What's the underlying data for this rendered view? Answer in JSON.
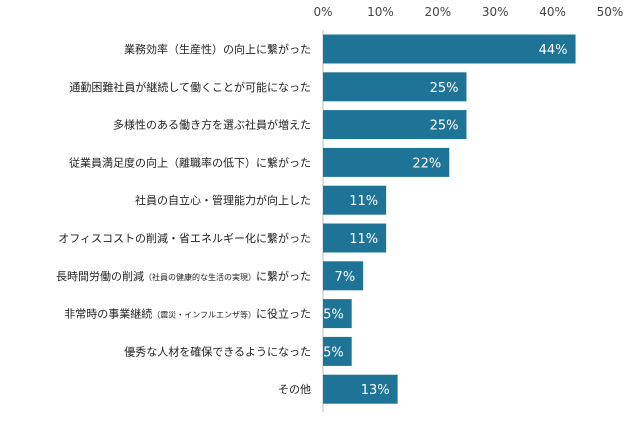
{
  "chart_data": {
    "type": "bar",
    "orientation": "horizontal",
    "title": "",
    "xlabel": "",
    "ylabel": "",
    "xlim": [
      0,
      50
    ],
    "ticks": [
      "0%",
      "10%",
      "20%",
      "30%",
      "40%",
      "50%"
    ],
    "grid": false,
    "bar_color": "#1e7496",
    "value_label_color": "#ffffff",
    "categories": [
      {
        "main": "業務効率（生産性）の向上に繋がった",
        "note": "",
        "suffix": ""
      },
      {
        "main": "通勤困難社員が継続して働くことが可能になった",
        "note": "",
        "suffix": ""
      },
      {
        "main": "多様性のある働き方を選ぶ社員が増えた",
        "note": "",
        "suffix": ""
      },
      {
        "main": "従業員満足度の向上（離職率の低下）に繋がった",
        "note": "",
        "suffix": ""
      },
      {
        "main": "社員の自立心・管理能力が向上した",
        "note": "",
        "suffix": ""
      },
      {
        "main": "オフィスコストの削減・省エネルギー化に繋がった",
        "note": "",
        "suffix": ""
      },
      {
        "main": "長時間労働の削減",
        "note": "（社員の健康的な生活の実現）",
        "suffix": "に繋がった"
      },
      {
        "main": "非常時の事業継続",
        "note": "（震災・インフルエンザ等）",
        "suffix": "に役立った"
      },
      {
        "main": "優秀な人材を確保できるようになった",
        "note": "",
        "suffix": ""
      },
      {
        "main": "その他",
        "note": "",
        "suffix": ""
      }
    ],
    "values": [
      44,
      25,
      25,
      22,
      11,
      11,
      7,
      5,
      5,
      13
    ],
    "value_labels": [
      "44%",
      "25%",
      "25%",
      "22%",
      "11%",
      "11%",
      "7%",
      "5%",
      "5%",
      "13%"
    ]
  }
}
